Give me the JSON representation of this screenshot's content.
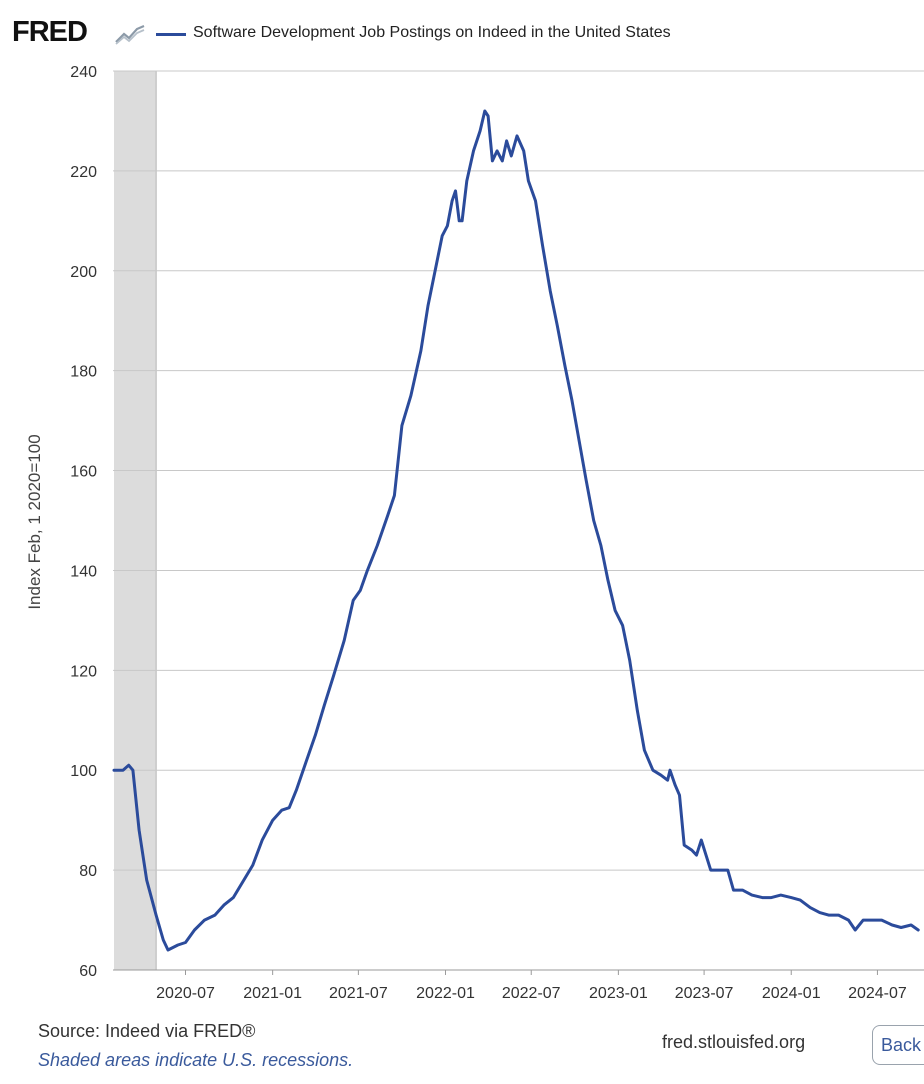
{
  "header": {
    "logo_text": "FRED",
    "logo_icon": "fred-graph-icon",
    "series_color": "#2b4b9b"
  },
  "chart_data": {
    "type": "line",
    "title": "Software Development Job Postings on Indeed in the United States",
    "ylabel": "Index Feb, 1 2020=100",
    "xlabel": "",
    "ylim": [
      60,
      240
    ],
    "yticks": [
      60,
      80,
      100,
      120,
      140,
      160,
      180,
      200,
      220,
      240
    ],
    "xticks": [
      "2020-07",
      "2021-01",
      "2021-07",
      "2022-01",
      "2022-07",
      "2023-01",
      "2023-07",
      "2024-01",
      "2024-07"
    ],
    "grid": true,
    "recession_shading": [
      [
        "2020-02-01",
        "2020-04-30"
      ]
    ],
    "series": [
      {
        "color": "#2b4b9b",
        "points": [
          [
            "2020-02-01",
            100
          ],
          [
            "2020-02-20",
            100
          ],
          [
            "2020-03-03",
            101
          ],
          [
            "2020-03-12",
            100
          ],
          [
            "2020-03-25",
            88
          ],
          [
            "2020-04-10",
            78
          ],
          [
            "2020-04-30",
            71
          ],
          [
            "2020-05-15",
            66
          ],
          [
            "2020-05-25",
            64
          ],
          [
            "2020-06-15",
            65
          ],
          [
            "2020-07-01",
            65.5
          ],
          [
            "2020-07-20",
            68
          ],
          [
            "2020-08-10",
            70
          ],
          [
            "2020-09-01",
            71
          ],
          [
            "2020-09-20",
            73
          ],
          [
            "2020-10-10",
            74.5
          ],
          [
            "2020-11-01",
            78
          ],
          [
            "2020-11-20",
            81
          ],
          [
            "2020-12-10",
            86
          ],
          [
            "2021-01-01",
            90
          ],
          [
            "2021-01-20",
            92
          ],
          [
            "2021-02-05",
            92.5
          ],
          [
            "2021-02-20",
            96
          ],
          [
            "2021-03-10",
            101
          ],
          [
            "2021-04-01",
            107
          ],
          [
            "2021-04-20",
            113
          ],
          [
            "2021-05-10",
            119
          ],
          [
            "2021-06-01",
            126
          ],
          [
            "2021-06-20",
            134
          ],
          [
            "2021-07-05",
            136
          ],
          [
            "2021-07-20",
            140
          ],
          [
            "2021-08-10",
            145
          ],
          [
            "2021-09-01",
            151
          ],
          [
            "2021-09-15",
            155
          ],
          [
            "2021-10-01",
            169
          ],
          [
            "2021-10-20",
            175
          ],
          [
            "2021-11-10",
            184
          ],
          [
            "2021-11-25",
            193
          ],
          [
            "2021-12-10",
            200
          ],
          [
            "2021-12-25",
            207
          ],
          [
            "2022-01-05",
            209
          ],
          [
            "2022-01-15",
            214
          ],
          [
            "2022-01-22",
            216
          ],
          [
            "2022-01-30",
            210
          ],
          [
            "2022-02-05",
            210
          ],
          [
            "2022-02-15",
            218
          ],
          [
            "2022-03-01",
            224
          ],
          [
            "2022-03-15",
            228
          ],
          [
            "2022-03-25",
            232
          ],
          [
            "2022-04-01",
            231
          ],
          [
            "2022-04-10",
            222
          ],
          [
            "2022-04-20",
            224
          ],
          [
            "2022-05-01",
            222
          ],
          [
            "2022-05-10",
            226
          ],
          [
            "2022-05-20",
            223
          ],
          [
            "2022-06-01",
            227
          ],
          [
            "2022-06-15",
            224
          ],
          [
            "2022-06-25",
            218
          ],
          [
            "2022-07-10",
            214
          ],
          [
            "2022-07-25",
            205
          ],
          [
            "2022-08-10",
            196
          ],
          [
            "2022-08-25",
            189
          ],
          [
            "2022-09-10",
            181
          ],
          [
            "2022-09-25",
            174
          ],
          [
            "2022-10-10",
            166
          ],
          [
            "2022-10-25",
            158
          ],
          [
            "2022-11-10",
            150
          ],
          [
            "2022-11-25",
            145
          ],
          [
            "2022-12-10",
            138
          ],
          [
            "2022-12-25",
            132
          ],
          [
            "2023-01-10",
            129
          ],
          [
            "2023-01-25",
            122
          ],
          [
            "2023-02-10",
            112
          ],
          [
            "2023-02-25",
            104
          ],
          [
            "2023-03-15",
            100
          ],
          [
            "2023-04-01",
            99
          ],
          [
            "2023-04-15",
            98
          ],
          [
            "2023-04-20",
            100
          ],
          [
            "2023-05-01",
            97
          ],
          [
            "2023-05-10",
            95
          ],
          [
            "2023-05-20",
            85
          ],
          [
            "2023-06-05",
            84
          ],
          [
            "2023-06-15",
            83
          ],
          [
            "2023-06-25",
            86
          ],
          [
            "2023-07-05",
            83
          ],
          [
            "2023-07-15",
            80
          ],
          [
            "2023-08-01",
            80
          ],
          [
            "2023-08-20",
            80
          ],
          [
            "2023-09-01",
            76
          ],
          [
            "2023-09-20",
            76
          ],
          [
            "2023-10-10",
            75
          ],
          [
            "2023-11-01",
            74.5
          ],
          [
            "2023-11-20",
            74.5
          ],
          [
            "2023-12-10",
            75
          ],
          [
            "2024-01-01",
            74.5
          ],
          [
            "2024-01-20",
            74
          ],
          [
            "2024-02-10",
            72.5
          ],
          [
            "2024-03-01",
            71.5
          ],
          [
            "2024-03-20",
            71
          ],
          [
            "2024-04-10",
            71
          ],
          [
            "2024-05-01",
            70
          ],
          [
            "2024-05-15",
            68
          ],
          [
            "2024-06-01",
            70
          ],
          [
            "2024-06-20",
            70
          ],
          [
            "2024-07-10",
            70
          ],
          [
            "2024-08-01",
            69
          ],
          [
            "2024-08-20",
            68.5
          ],
          [
            "2024-09-10",
            69
          ],
          [
            "2024-09-25",
            68
          ]
        ]
      }
    ]
  },
  "footer": {
    "source": "Source: Indeed via FRED®",
    "note": "Shaded areas indicate U.S. recessions.",
    "site": "fred.stlouisfed.org",
    "back_label": "Back"
  }
}
